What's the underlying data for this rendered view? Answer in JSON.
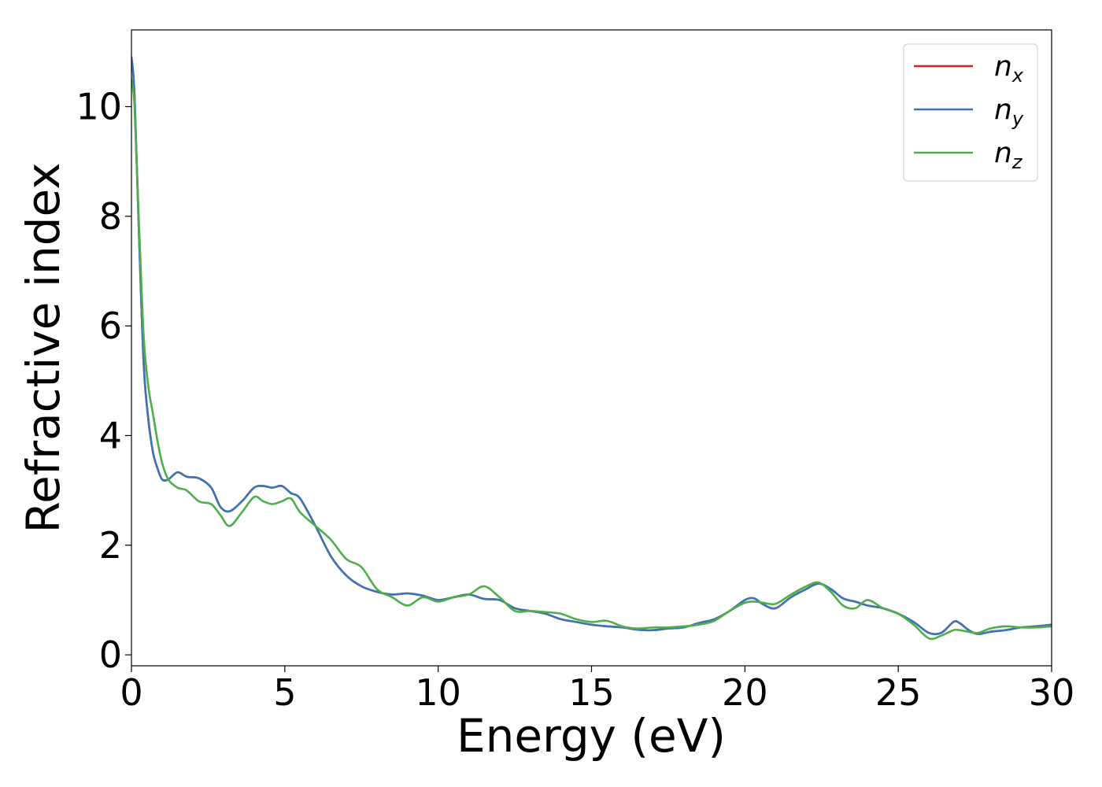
{
  "chart_data": {
    "type": "line",
    "xlabel": "Energy (eV)",
    "ylabel": "Refractive index",
    "xlim": [
      0,
      30
    ],
    "ylim": [
      -0.2,
      11.4
    ],
    "xticks": [
      "0",
      "5",
      "10",
      "15",
      "20",
      "25",
      "30"
    ],
    "yticks": [
      "0",
      "2",
      "4",
      "6",
      "8",
      "10"
    ],
    "grid": false,
    "legend_position": "top-right",
    "series": [
      {
        "name": "n_x",
        "label_base": "n",
        "label_sub": "x",
        "color": "#e41a1c",
        "x": [
          0,
          0.1,
          0.25,
          0.4,
          0.55,
          0.7,
          0.85,
          1.0,
          1.2,
          1.5,
          1.8,
          2.2,
          2.6,
          2.9,
          3.2,
          3.6,
          4.0,
          4.3,
          4.6,
          4.9,
          5.2,
          5.5,
          6.0,
          6.5,
          7.0,
          7.5,
          8.0,
          8.5,
          9.0,
          9.5,
          10.0,
          10.5,
          11.0,
          11.5,
          12.0,
          12.5,
          13.0,
          13.5,
          14.0,
          14.5,
          15.0,
          15.5,
          16.0,
          16.5,
          17.0,
          17.5,
          18.0,
          18.5,
          19.0,
          19.5,
          20.0,
          20.3,
          20.6,
          21.0,
          21.5,
          22.0,
          22.4,
          22.8,
          23.2,
          23.6,
          24.0,
          24.5,
          25.0,
          25.5,
          26.0,
          26.4,
          26.8,
          27.0,
          27.3,
          27.6,
          28.0,
          28.5,
          29.0,
          29.5,
          30.0
        ],
        "y": [
          10.9,
          10.2,
          7.6,
          5.3,
          4.3,
          3.7,
          3.4,
          3.2,
          3.2,
          3.33,
          3.25,
          3.22,
          3.05,
          2.7,
          2.62,
          2.8,
          3.05,
          3.08,
          3.05,
          3.08,
          2.95,
          2.85,
          2.35,
          1.8,
          1.45,
          1.25,
          1.15,
          1.1,
          1.12,
          1.08,
          1.0,
          1.05,
          1.1,
          1.02,
          1.0,
          0.85,
          0.8,
          0.75,
          0.65,
          0.6,
          0.55,
          0.52,
          0.5,
          0.46,
          0.45,
          0.48,
          0.5,
          0.58,
          0.65,
          0.8,
          1.0,
          1.03,
          0.92,
          0.85,
          1.05,
          1.2,
          1.3,
          1.2,
          1.03,
          0.97,
          0.9,
          0.85,
          0.75,
          0.6,
          0.4,
          0.4,
          0.6,
          0.58,
          0.45,
          0.38,
          0.42,
          0.45,
          0.5,
          0.52,
          0.55
        ]
      },
      {
        "name": "n_y",
        "label_base": "n",
        "label_sub": "y",
        "color": "#3a76b6",
        "x": [
          0,
          0.1,
          0.25,
          0.4,
          0.55,
          0.7,
          0.85,
          1.0,
          1.2,
          1.5,
          1.8,
          2.2,
          2.6,
          2.9,
          3.2,
          3.6,
          4.0,
          4.3,
          4.6,
          4.9,
          5.2,
          5.5,
          6.0,
          6.5,
          7.0,
          7.5,
          8.0,
          8.5,
          9.0,
          9.5,
          10.0,
          10.5,
          11.0,
          11.5,
          12.0,
          12.5,
          13.0,
          13.5,
          14.0,
          14.5,
          15.0,
          15.5,
          16.0,
          16.5,
          17.0,
          17.5,
          18.0,
          18.5,
          19.0,
          19.5,
          20.0,
          20.3,
          20.6,
          21.0,
          21.5,
          22.0,
          22.4,
          22.8,
          23.2,
          23.6,
          24.0,
          24.5,
          25.0,
          25.5,
          26.0,
          26.4,
          26.8,
          27.0,
          27.3,
          27.6,
          28.0,
          28.5,
          29.0,
          29.5,
          30.0
        ],
        "y": [
          10.9,
          10.2,
          7.6,
          5.3,
          4.3,
          3.7,
          3.4,
          3.2,
          3.2,
          3.33,
          3.25,
          3.22,
          3.05,
          2.7,
          2.62,
          2.8,
          3.05,
          3.08,
          3.05,
          3.08,
          2.95,
          2.85,
          2.35,
          1.8,
          1.45,
          1.25,
          1.15,
          1.1,
          1.12,
          1.08,
          1.0,
          1.05,
          1.1,
          1.02,
          1.0,
          0.85,
          0.8,
          0.75,
          0.65,
          0.6,
          0.55,
          0.52,
          0.5,
          0.46,
          0.45,
          0.48,
          0.5,
          0.58,
          0.65,
          0.8,
          1.0,
          1.03,
          0.92,
          0.85,
          1.05,
          1.2,
          1.3,
          1.2,
          1.03,
          0.97,
          0.9,
          0.85,
          0.75,
          0.6,
          0.4,
          0.4,
          0.6,
          0.58,
          0.45,
          0.38,
          0.42,
          0.45,
          0.5,
          0.52,
          0.55
        ]
      },
      {
        "name": "n_z",
        "label_base": "n",
        "label_sub": "z",
        "color": "#4daf4a",
        "x": [
          0,
          0.1,
          0.25,
          0.4,
          0.55,
          0.7,
          0.85,
          1.0,
          1.2,
          1.5,
          1.8,
          2.2,
          2.6,
          2.9,
          3.2,
          3.6,
          4.0,
          4.3,
          4.6,
          4.9,
          5.2,
          5.5,
          6.0,
          6.5,
          7.0,
          7.5,
          8.0,
          8.5,
          9.0,
          9.5,
          10.0,
          10.5,
          11.0,
          11.5,
          12.0,
          12.5,
          13.0,
          13.5,
          14.0,
          14.5,
          15.0,
          15.5,
          16.0,
          16.5,
          17.0,
          17.5,
          18.0,
          18.5,
          19.0,
          19.5,
          20.0,
          20.3,
          20.6,
          21.0,
          21.5,
          22.0,
          22.4,
          22.8,
          23.2,
          23.6,
          24.0,
          24.5,
          25.0,
          25.5,
          26.0,
          26.4,
          26.8,
          27.0,
          27.3,
          27.6,
          28.0,
          28.5,
          29.0,
          29.5,
          30.0
        ],
        "y": [
          10.5,
          10.0,
          7.8,
          5.8,
          4.9,
          4.4,
          3.9,
          3.5,
          3.2,
          3.05,
          3.0,
          2.8,
          2.75,
          2.55,
          2.35,
          2.6,
          2.88,
          2.8,
          2.75,
          2.8,
          2.85,
          2.6,
          2.35,
          2.1,
          1.75,
          1.6,
          1.2,
          1.05,
          0.9,
          1.05,
          0.97,
          1.05,
          1.1,
          1.25,
          1.05,
          0.8,
          0.8,
          0.78,
          0.75,
          0.65,
          0.6,
          0.62,
          0.52,
          0.48,
          0.5,
          0.5,
          0.52,
          0.55,
          0.62,
          0.8,
          0.95,
          0.97,
          0.95,
          0.93,
          1.1,
          1.25,
          1.32,
          1.15,
          0.9,
          0.85,
          1.0,
          0.85,
          0.75,
          0.55,
          0.3,
          0.35,
          0.45,
          0.45,
          0.42,
          0.4,
          0.48,
          0.52,
          0.5,
          0.5,
          0.52
        ]
      }
    ]
  }
}
